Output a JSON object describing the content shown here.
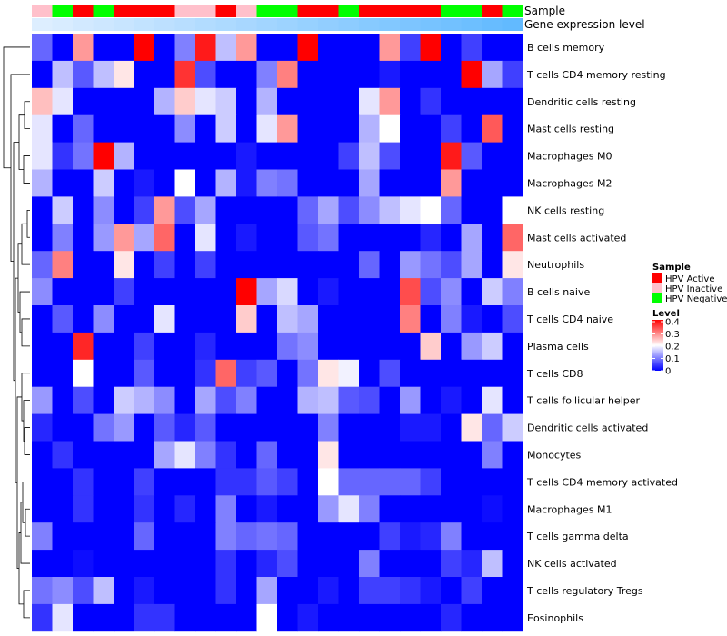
{
  "chart_data": {
    "type": "heatmap",
    "annotation_labels": {
      "sample": "Sample",
      "gene_expression": "Gene expression level"
    },
    "rows": [
      "B cells memory",
      "T cells CD4 memory resting",
      "Dendritic cells resting",
      "Mast cells resting",
      "Macrophages M0",
      "Macrophages M2",
      "NK cells resting",
      "Mast cells activated",
      "Neutrophils",
      "B cells naive",
      "T cells CD4 naive",
      "Plasma cells",
      "T cells CD8",
      "T cells follicular helper",
      "Dendritic cells activated",
      "Monocytes",
      "T cells CD4 memory activated",
      "Macrophages M1",
      "T cells gamma delta",
      "NK cells activated",
      "T cells regulatory  Tregs",
      "Eosinophils"
    ],
    "sample_groups": [
      "HPV Inactive",
      "HPV Negative",
      "HPV Active",
      "HPV Negative",
      "HPV Active",
      "HPV Active",
      "HPV Active",
      "HPV Inactive",
      "HPV Inactive",
      "HPV Active",
      "HPV Inactive",
      "HPV Negative",
      "HPV Negative",
      "HPV Active",
      "HPV Active",
      "HPV Negative",
      "HPV Active",
      "HPV Active",
      "HPV Active",
      "HPV Active",
      "HPV Negative",
      "HPV Negative",
      "HPV Active",
      "HPV Negative"
    ],
    "expression_level": [
      0.02,
      0.03,
      0.04,
      0.05,
      0.06,
      0.07,
      0.08,
      0.09,
      0.1,
      0.11,
      0.12,
      0.13,
      0.14,
      0.15,
      0.16,
      0.17,
      0.18,
      0.19,
      0.2,
      0.21,
      0.22,
      0.23,
      0.24,
      0.25
    ],
    "values": [
      [
        0.08,
        0.0,
        0.28,
        0.0,
        0.0,
        0.4,
        0.0,
        0.1,
        0.38,
        0.15,
        0.28,
        0.0,
        0.0,
        0.4,
        0.0,
        0.0,
        0.0,
        0.28,
        0.05,
        0.4,
        0.0,
        0.05,
        0.0,
        0.0
      ],
      [
        0.0,
        0.15,
        0.07,
        0.15,
        0.22,
        0.0,
        0.0,
        0.36,
        0.06,
        0.0,
        0.0,
        0.1,
        0.3,
        0.0,
        0.0,
        0.0,
        0.0,
        0.02,
        0.0,
        0.0,
        0.0,
        0.4,
        0.13,
        0.05
      ],
      [
        0.25,
        0.18,
        0.0,
        0.0,
        0.0,
        0.0,
        0.14,
        0.24,
        0.18,
        0.16,
        0.0,
        0.14,
        0.0,
        0.0,
        0.0,
        0.0,
        0.18,
        0.28,
        0.0,
        0.04,
        0.0,
        0.0,
        0.0,
        0.0
      ],
      [
        0.18,
        0.0,
        0.08,
        0.0,
        0.0,
        0.0,
        0.0,
        0.11,
        0.0,
        0.16,
        0.0,
        0.18,
        0.28,
        0.0,
        0.0,
        0.0,
        0.14,
        0.2,
        0.0,
        0.0,
        0.05,
        0.0,
        0.33,
        0.0
      ],
      [
        0.18,
        0.04,
        0.09,
        0.4,
        0.14,
        0.0,
        0.0,
        0.0,
        0.0,
        0.0,
        0.02,
        0.0,
        0.0,
        0.0,
        0.0,
        0.05,
        0.15,
        0.06,
        0.0,
        0.0,
        0.38,
        0.07,
        0.0,
        0.0
      ],
      [
        0.14,
        0.0,
        0.0,
        0.16,
        0.0,
        0.02,
        0.0,
        0.2,
        0.0,
        0.14,
        0.02,
        0.1,
        0.09,
        0.0,
        0.0,
        0.0,
        0.13,
        0.0,
        0.0,
        0.0,
        0.28,
        0.0,
        0.0,
        0.0
      ],
      [
        0.0,
        0.16,
        0.0,
        0.11,
        0.0,
        0.05,
        0.28,
        0.06,
        0.13,
        0.0,
        0.0,
        0.0,
        0.0,
        0.08,
        0.13,
        0.06,
        0.11,
        0.15,
        0.18,
        0.2,
        0.08,
        0.0,
        0.0,
        0.2
      ],
      [
        0.0,
        0.1,
        0.0,
        0.12,
        0.28,
        0.13,
        0.32,
        0.0,
        0.18,
        0.0,
        0.02,
        0.0,
        0.0,
        0.07,
        0.09,
        0.0,
        0.0,
        0.0,
        0.0,
        0.03,
        0.0,
        0.13,
        0.0,
        0.32
      ],
      [
        0.08,
        0.3,
        0.0,
        0.0,
        0.22,
        0.0,
        0.05,
        0.0,
        0.05,
        0.0,
        0.0,
        0.0,
        0.0,
        0.0,
        0.0,
        0.0,
        0.08,
        0.0,
        0.12,
        0.09,
        0.06,
        0.13,
        0.0,
        0.22
      ],
      [
        0.11,
        0.0,
        0.0,
        0.0,
        0.05,
        0.0,
        0.0,
        0.0,
        0.0,
        0.0,
        0.4,
        0.13,
        0.17,
        0.0,
        0.02,
        0.0,
        0.0,
        0.0,
        0.34,
        0.06,
        0.11,
        0.0,
        0.16,
        0.1
      ],
      [
        0.0,
        0.07,
        0.0,
        0.11,
        0.0,
        0.0,
        0.18,
        0.0,
        0.0,
        0.0,
        0.24,
        0.0,
        0.15,
        0.13,
        0.0,
        0.0,
        0.0,
        0.0,
        0.3,
        0.0,
        0.1,
        0.02,
        0.0,
        0.06
      ],
      [
        0.0,
        0.0,
        0.37,
        0.0,
        0.0,
        0.05,
        0.0,
        0.0,
        0.03,
        0.0,
        0.0,
        0.0,
        0.09,
        0.11,
        0.0,
        0.0,
        0.0,
        0.0,
        0.0,
        0.24,
        0.0,
        0.12,
        0.16,
        0.0
      ],
      [
        0.0,
        0.0,
        0.2,
        0.0,
        0.0,
        0.07,
        0.0,
        0.0,
        0.04,
        0.32,
        0.05,
        0.07,
        0.0,
        0.09,
        0.22,
        0.19,
        0.0,
        0.06,
        0.0,
        0.0,
        0.0,
        0.0,
        0.0,
        0.0
      ],
      [
        0.12,
        0.0,
        0.06,
        0.0,
        0.16,
        0.14,
        0.11,
        0.0,
        0.13,
        0.06,
        0.1,
        0.0,
        0.0,
        0.14,
        0.15,
        0.07,
        0.06,
        0.0,
        0.12,
        0.0,
        0.02,
        0.0,
        0.18,
        0.0
      ],
      [
        0.03,
        0.0,
        0.0,
        0.09,
        0.12,
        0.0,
        0.07,
        0.03,
        0.07,
        0.0,
        0.0,
        0.0,
        0.0,
        0.0,
        0.1,
        0.0,
        0.0,
        0.0,
        0.02,
        0.02,
        0.0,
        0.22,
        0.08,
        0.16
      ],
      [
        0.0,
        0.04,
        0.0,
        0.0,
        0.0,
        0.0,
        0.13,
        0.18,
        0.1,
        0.04,
        0.0,
        0.08,
        0.0,
        0.0,
        0.22,
        0.0,
        0.0,
        0.0,
        0.0,
        0.0,
        0.0,
        0.0,
        0.1,
        0.0
      ],
      [
        0.0,
        0.0,
        0.04,
        0.0,
        0.0,
        0.05,
        0.0,
        0.0,
        0.0,
        0.04,
        0.04,
        0.07,
        0.05,
        0.0,
        0.2,
        0.08,
        0.08,
        0.08,
        0.08,
        0.05,
        0.0,
        0.0,
        0.0,
        0.0
      ],
      [
        0.0,
        0.0,
        0.04,
        0.0,
        0.0,
        0.04,
        0.0,
        0.03,
        0.0,
        0.1,
        0.0,
        0.02,
        0.0,
        0.0,
        0.12,
        0.18,
        0.1,
        0.0,
        0.0,
        0.0,
        0.0,
        0.0,
        0.01,
        0.0
      ],
      [
        0.1,
        0.0,
        0.0,
        0.0,
        0.0,
        0.08,
        0.0,
        0.0,
        0.0,
        0.1,
        0.08,
        0.09,
        0.08,
        0.0,
        0.0,
        0.0,
        0.0,
        0.05,
        0.02,
        0.03,
        0.1,
        0.0,
        0.0,
        0.0
      ],
      [
        0.0,
        0.0,
        0.01,
        0.0,
        0.0,
        0.0,
        0.0,
        0.0,
        0.0,
        0.04,
        0.0,
        0.03,
        0.06,
        0.0,
        0.0,
        0.0,
        0.1,
        0.0,
        0.0,
        0.0,
        0.05,
        0.03,
        0.15,
        0.0
      ],
      [
        0.09,
        0.11,
        0.06,
        0.15,
        0.0,
        0.02,
        0.0,
        0.0,
        0.0,
        0.04,
        0.0,
        0.13,
        0.0,
        0.0,
        0.02,
        0.0,
        0.05,
        0.05,
        0.04,
        0.02,
        0.0,
        0.05,
        0.0,
        0.0
      ],
      [
        0.04,
        0.18,
        0.0,
        0.0,
        0.0,
        0.04,
        0.04,
        0.0,
        0.0,
        0.0,
        0.0,
        0.2,
        0.0,
        0.02,
        0.0,
        0.0,
        0.0,
        0.0,
        0.0,
        0.0,
        0.03,
        0.0,
        0.0,
        0.0
      ]
    ],
    "legend": {
      "sample_title": "Sample",
      "sample_entries": [
        {
          "label": "HPV Active",
          "color": "#ff0000"
        },
        {
          "label": "HPV Inactive",
          "color": "#ffc0cb"
        },
        {
          "label": "HPV Negative",
          "color": "#00ff00"
        }
      ],
      "level_title": "Level",
      "level_ticks": [
        "0.4",
        "0.3",
        "0.2",
        "0.1",
        "0"
      ],
      "level_range": [
        0,
        0.4
      ]
    },
    "colors": {
      "low": "#0000ff",
      "mid": "#ffffff",
      "high": "#ff0000"
    }
  }
}
